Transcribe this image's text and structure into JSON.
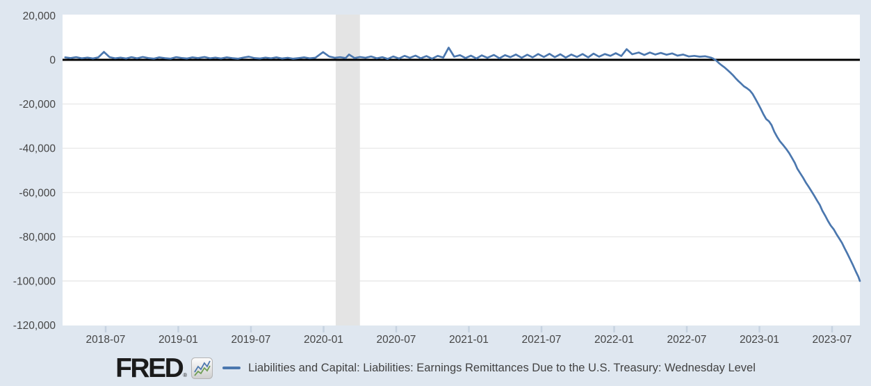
{
  "page": {
    "background": "#dfe7f0",
    "plot_background": "#ffffff",
    "gridline_color": "#e9e9e9",
    "recession_band_color": "#e4e4e4",
    "zero_line_color": "#000000",
    "tick_color": "#c6d2e0",
    "axis_label_color": "#454545"
  },
  "footer": {
    "logo": "FRED",
    "reg": "®",
    "logo_chart_icon": "fred-zigzag-chart-icon",
    "legend_label": "Liabilities and Capital: Liabilities: Earnings Remittances Due to the U.S. Treasury: Wednesday Level"
  },
  "chart_data": {
    "type": "line",
    "title": "Liabilities and Capital: Liabilities: Earnings Remittances Due to the U.S. Treasury: Wednesday Level",
    "line_color": "#4b77ae",
    "ylim": [
      -120000,
      20000
    ],
    "grid": "horizontal-only",
    "legend_position": "bottom",
    "zero_line": 0,
    "recession_band": {
      "start": "2020-02",
      "end": "2020-04"
    },
    "y_ticks": [
      {
        "label": "20,000",
        "v": 20000
      },
      {
        "label": "0",
        "v": 0
      },
      {
        "label": "-20,000",
        "v": -20000
      },
      {
        "label": "-40,000",
        "v": -40000
      },
      {
        "label": "-60,000",
        "v": -60000
      },
      {
        "label": "-80,000",
        "v": -80000
      },
      {
        "label": "-100,000",
        "v": -100000
      },
      {
        "label": "-120,000",
        "v": -120000
      }
    ],
    "x_ticks": [
      {
        "label": "2018-07",
        "date": "2018-07"
      },
      {
        "label": "2019-01",
        "date": "2019-01"
      },
      {
        "label": "2019-07",
        "date": "2019-07"
      },
      {
        "label": "2020-01",
        "date": "2020-01"
      },
      {
        "label": "2020-07",
        "date": "2020-07"
      },
      {
        "label": "2021-01",
        "date": "2021-01"
      },
      {
        "label": "2021-07",
        "date": "2021-07"
      },
      {
        "label": "2022-01",
        "date": "2022-01"
      },
      {
        "label": "2022-07",
        "date": "2022-07"
      },
      {
        "label": "2023-01",
        "date": "2023-01"
      },
      {
        "label": "2023-07",
        "date": "2023-07"
      }
    ],
    "series": [
      [
        "2018-03-21",
        1100
      ],
      [
        "2018-04-04",
        800
      ],
      [
        "2018-04-18",
        1200
      ],
      [
        "2018-05-02",
        700
      ],
      [
        "2018-05-16",
        1000
      ],
      [
        "2018-05-30",
        600
      ],
      [
        "2018-06-13",
        1100
      ],
      [
        "2018-06-27",
        3600
      ],
      [
        "2018-07-11",
        1200
      ],
      [
        "2018-07-25",
        700
      ],
      [
        "2018-08-08",
        1000
      ],
      [
        "2018-08-22",
        600
      ],
      [
        "2018-09-05",
        1200
      ],
      [
        "2018-09-19",
        700
      ],
      [
        "2018-10-03",
        1300
      ],
      [
        "2018-10-17",
        800
      ],
      [
        "2018-10-31",
        550
      ],
      [
        "2018-11-14",
        1100
      ],
      [
        "2018-11-28",
        750
      ],
      [
        "2018-12-12",
        550
      ],
      [
        "2018-12-26",
        1200
      ],
      [
        "2019-01-09",
        850
      ],
      [
        "2019-01-23",
        600
      ],
      [
        "2019-02-06",
        1100
      ],
      [
        "2019-02-20",
        800
      ],
      [
        "2019-03-06",
        1250
      ],
      [
        "2019-03-20",
        700
      ],
      [
        "2019-04-03",
        1000
      ],
      [
        "2019-04-17",
        600
      ],
      [
        "2019-05-01",
        1100
      ],
      [
        "2019-05-15",
        750
      ],
      [
        "2019-05-29",
        500
      ],
      [
        "2019-06-12",
        1000
      ],
      [
        "2019-06-26",
        1400
      ],
      [
        "2019-07-10",
        800
      ],
      [
        "2019-07-24",
        600
      ],
      [
        "2019-08-07",
        1000
      ],
      [
        "2019-08-21",
        700
      ],
      [
        "2019-09-04",
        1100
      ],
      [
        "2019-09-18",
        600
      ],
      [
        "2019-10-02",
        900
      ],
      [
        "2019-10-16",
        500
      ],
      [
        "2019-10-30",
        800
      ],
      [
        "2019-11-13",
        1100
      ],
      [
        "2019-11-27",
        700
      ],
      [
        "2019-12-11",
        950
      ],
      [
        "2019-12-30",
        3500
      ],
      [
        "2020-01-15",
        1500
      ],
      [
        "2020-01-29",
        900
      ],
      [
        "2020-02-12",
        1200
      ],
      [
        "2020-02-26",
        800
      ],
      [
        "2020-03-04",
        2400
      ],
      [
        "2020-03-18",
        800
      ],
      [
        "2020-04-01",
        1300
      ],
      [
        "2020-04-15",
        900
      ],
      [
        "2020-04-29",
        1500
      ],
      [
        "2020-05-13",
        700
      ],
      [
        "2020-05-27",
        1200
      ],
      [
        "2020-06-10",
        400
      ],
      [
        "2020-06-24",
        1500
      ],
      [
        "2020-07-08",
        600
      ],
      [
        "2020-07-22",
        1800
      ],
      [
        "2020-08-05",
        900
      ],
      [
        "2020-08-19",
        1900
      ],
      [
        "2020-09-02",
        700
      ],
      [
        "2020-09-16",
        1700
      ],
      [
        "2020-09-30",
        500
      ],
      [
        "2020-10-14",
        1800
      ],
      [
        "2020-10-28",
        1000
      ],
      [
        "2020-11-11",
        5500
      ],
      [
        "2020-11-25",
        1400
      ],
      [
        "2020-12-09",
        2100
      ],
      [
        "2020-12-23",
        800
      ],
      [
        "2021-01-06",
        1900
      ],
      [
        "2021-01-20",
        600
      ],
      [
        "2021-02-03",
        2000
      ],
      [
        "2021-02-17",
        900
      ],
      [
        "2021-03-03",
        2200
      ],
      [
        "2021-03-17",
        700
      ],
      [
        "2021-03-31",
        2100
      ],
      [
        "2021-04-14",
        1200
      ],
      [
        "2021-04-28",
        2400
      ],
      [
        "2021-05-12",
        900
      ],
      [
        "2021-05-26",
        2300
      ],
      [
        "2021-06-09",
        1100
      ],
      [
        "2021-06-23",
        2600
      ],
      [
        "2021-07-07",
        1300
      ],
      [
        "2021-07-21",
        2700
      ],
      [
        "2021-08-04",
        1200
      ],
      [
        "2021-08-18",
        2500
      ],
      [
        "2021-09-01",
        1000
      ],
      [
        "2021-09-15",
        2400
      ],
      [
        "2021-09-29",
        1300
      ],
      [
        "2021-10-13",
        2600
      ],
      [
        "2021-10-27",
        1100
      ],
      [
        "2021-11-10",
        2800
      ],
      [
        "2021-11-24",
        1400
      ],
      [
        "2021-12-08",
        2600
      ],
      [
        "2021-12-22",
        1800
      ],
      [
        "2022-01-05",
        3000
      ],
      [
        "2022-01-19",
        1700
      ],
      [
        "2022-02-02",
        4800
      ],
      [
        "2022-02-16",
        2500
      ],
      [
        "2022-03-02",
        3300
      ],
      [
        "2022-03-16",
        2200
      ],
      [
        "2022-03-30",
        3300
      ],
      [
        "2022-04-13",
        2400
      ],
      [
        "2022-04-27",
        3100
      ],
      [
        "2022-05-11",
        2300
      ],
      [
        "2022-05-25",
        2900
      ],
      [
        "2022-06-08",
        1900
      ],
      [
        "2022-06-22",
        2400
      ],
      [
        "2022-07-06",
        1500
      ],
      [
        "2022-07-20",
        1800
      ],
      [
        "2022-08-03",
        1400
      ],
      [
        "2022-08-17",
        1600
      ],
      [
        "2022-08-31",
        1000
      ],
      [
        "2022-09-07",
        500
      ],
      [
        "2022-09-14",
        -300
      ],
      [
        "2022-09-21",
        -1500
      ],
      [
        "2022-09-28",
        -2500
      ],
      [
        "2022-10-05",
        -3500
      ],
      [
        "2022-10-12",
        -4600
      ],
      [
        "2022-10-19",
        -5800
      ],
      [
        "2022-10-26",
        -7000
      ],
      [
        "2022-11-02",
        -8300
      ],
      [
        "2022-11-09",
        -9600
      ],
      [
        "2022-11-16",
        -10800
      ],
      [
        "2022-11-23",
        -12000
      ],
      [
        "2022-11-30",
        -12800
      ],
      [
        "2022-12-07",
        -13800
      ],
      [
        "2022-12-14",
        -15300
      ],
      [
        "2022-12-21",
        -17500
      ],
      [
        "2022-12-28",
        -19800
      ],
      [
        "2023-01-04",
        -22000
      ],
      [
        "2023-01-11",
        -24600
      ],
      [
        "2023-01-18",
        -26800
      ],
      [
        "2023-01-25",
        -27800
      ],
      [
        "2023-02-01",
        -29500
      ],
      [
        "2023-02-08",
        -32500
      ],
      [
        "2023-02-15",
        -34800
      ],
      [
        "2023-02-22",
        -36800
      ],
      [
        "2023-03-01",
        -38800
      ],
      [
        "2023-03-08",
        -40400
      ],
      [
        "2023-03-15",
        -42200
      ],
      [
        "2023-03-22",
        -44400
      ],
      [
        "2023-03-29",
        -46600
      ],
      [
        "2023-04-05",
        -49200
      ],
      [
        "2023-04-12",
        -51200
      ],
      [
        "2023-04-19",
        -53200
      ],
      [
        "2023-04-26",
        -55400
      ],
      [
        "2023-05-03",
        -57400
      ],
      [
        "2023-05-10",
        -59400
      ],
      [
        "2023-05-17",
        -61400
      ],
      [
        "2023-05-24",
        -63600
      ],
      [
        "2023-05-31",
        -65600
      ],
      [
        "2023-06-07",
        -68200
      ],
      [
        "2023-06-14",
        -70400
      ],
      [
        "2023-06-21",
        -72800
      ],
      [
        "2023-06-28",
        -74900
      ],
      [
        "2023-07-05",
        -76600
      ],
      [
        "2023-07-12",
        -78800
      ],
      [
        "2023-07-19",
        -80800
      ],
      [
        "2023-07-26",
        -82800
      ],
      [
        "2023-08-02",
        -85200
      ],
      [
        "2023-08-09",
        -87600
      ],
      [
        "2023-08-16",
        -90200
      ],
      [
        "2023-08-23",
        -92800
      ],
      [
        "2023-08-30",
        -95600
      ],
      [
        "2023-09-06",
        -98000
      ],
      [
        "2023-09-13",
        -100000
      ]
    ]
  }
}
